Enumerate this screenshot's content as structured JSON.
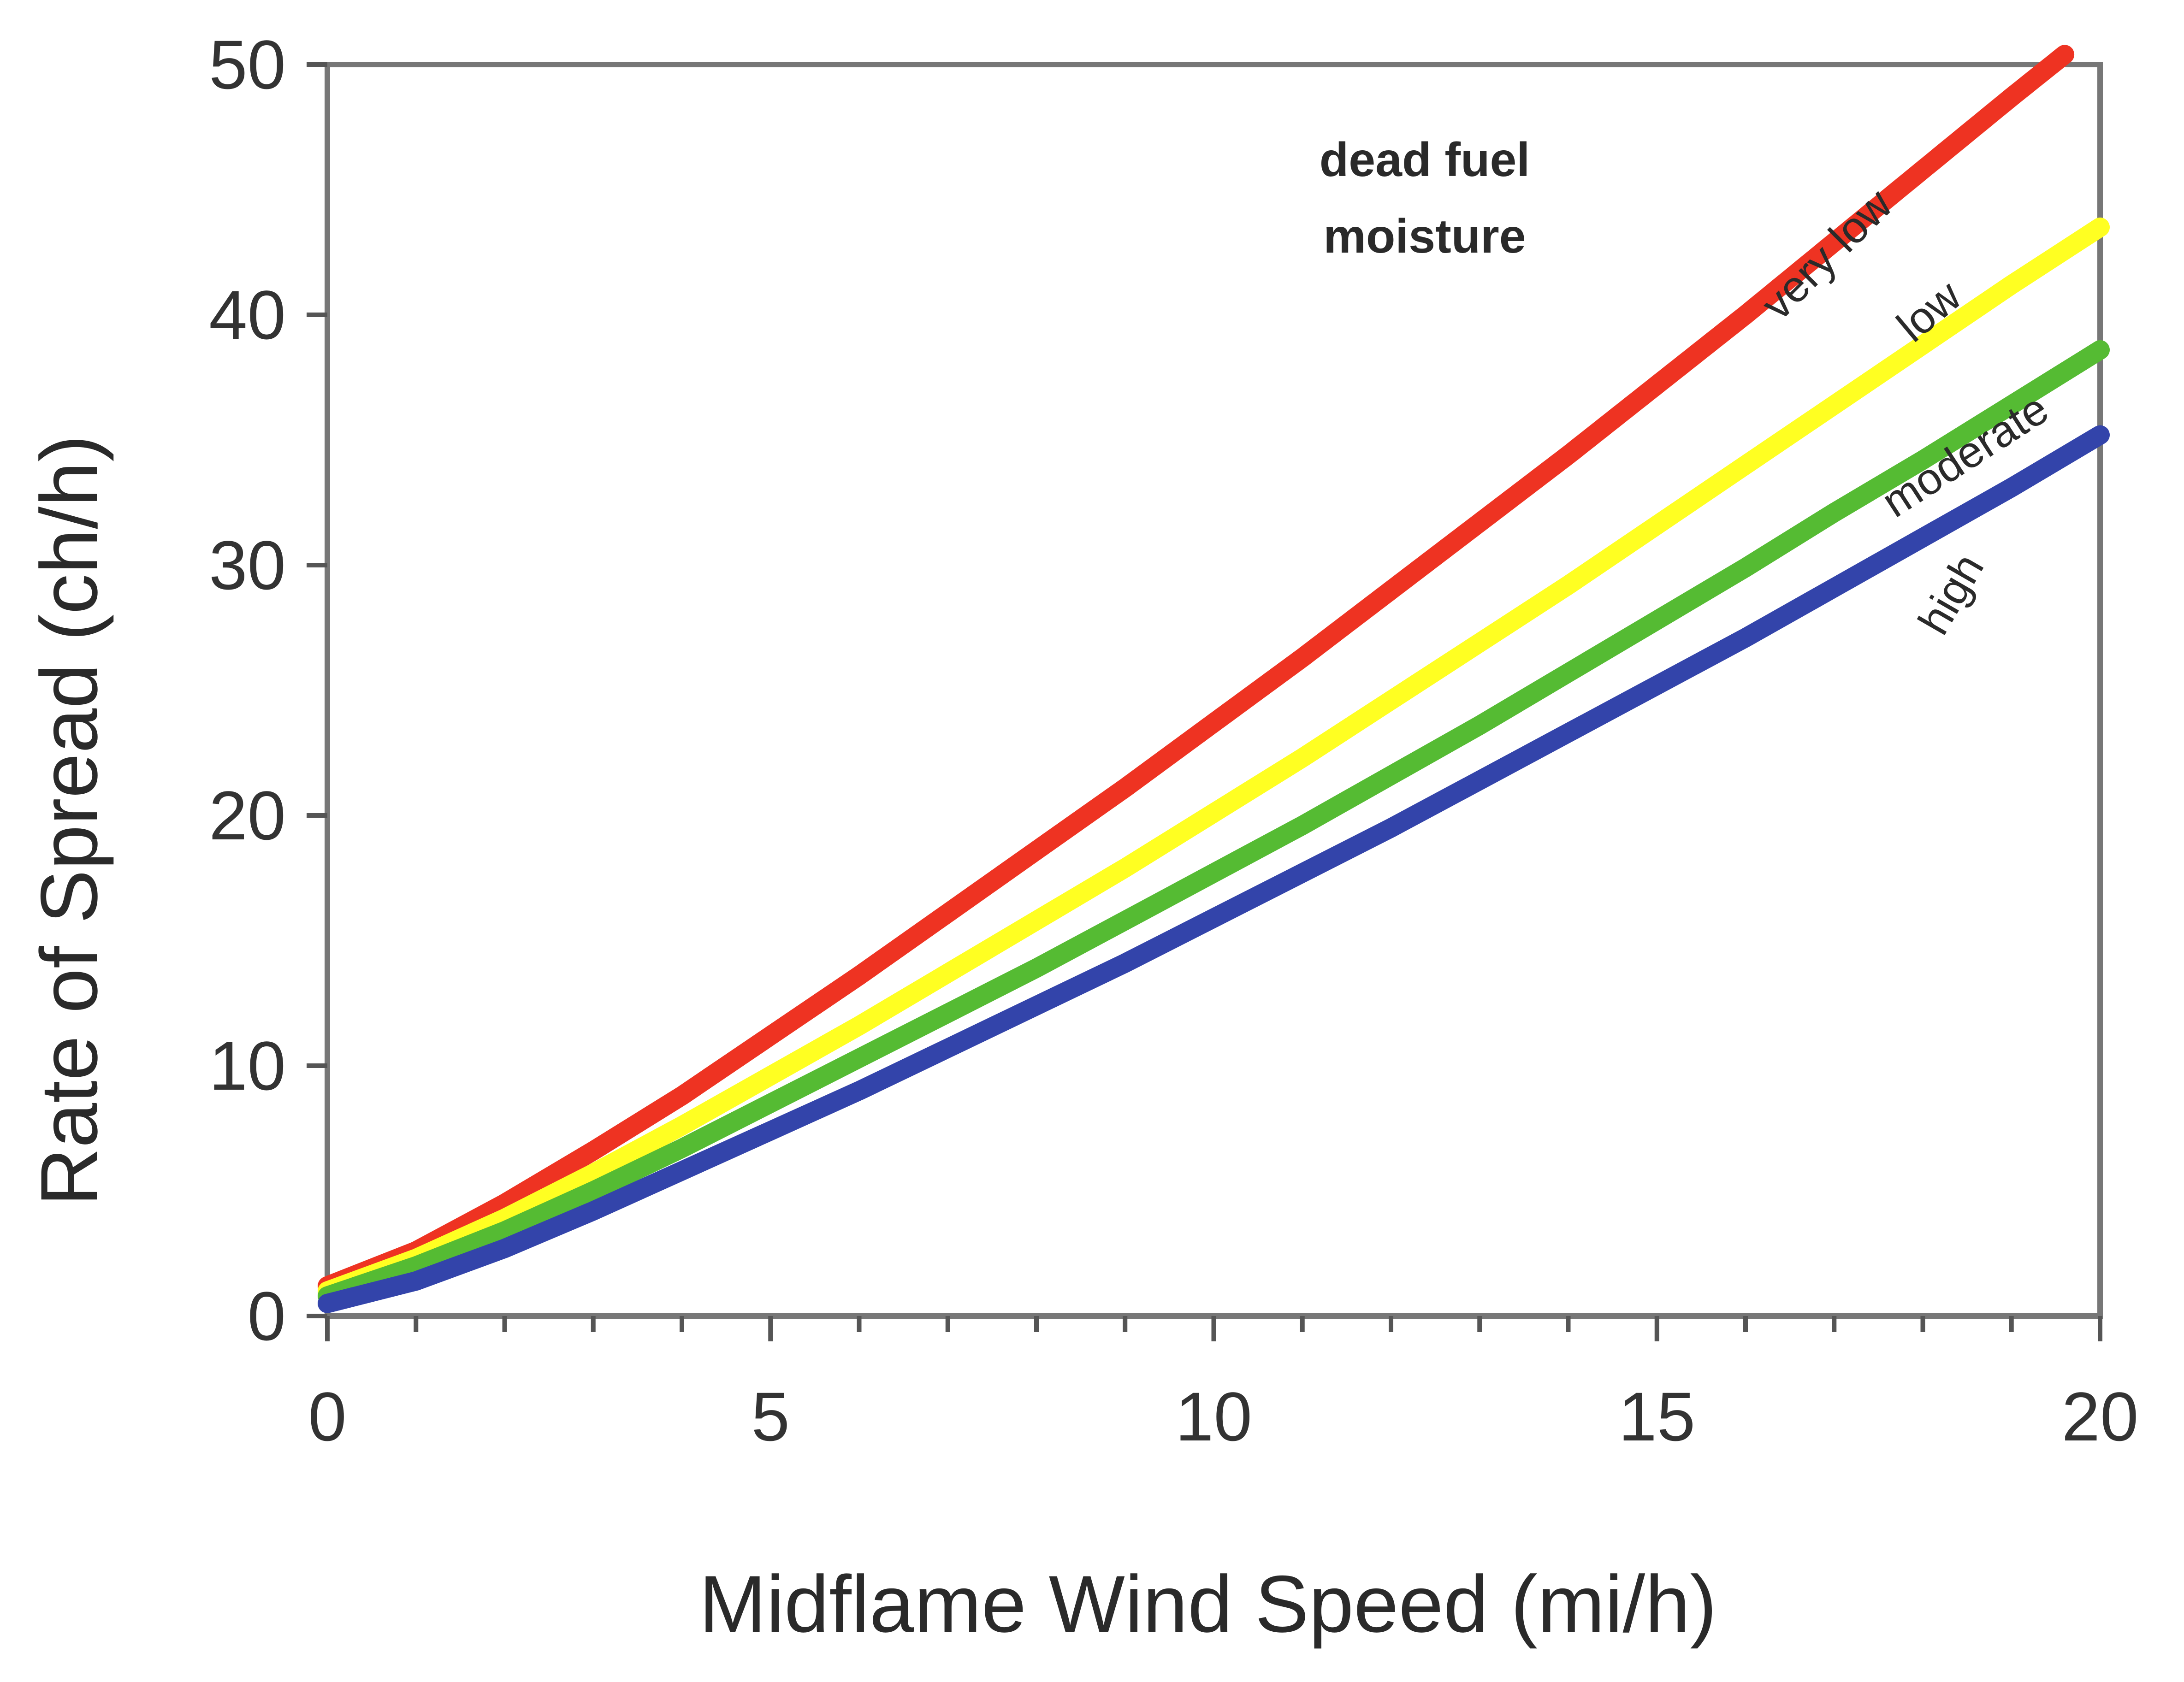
{
  "chart_data": {
    "type": "line",
    "title": "",
    "xlabel": "Midflame Wind Speed (mi/h)",
    "ylabel": "Rate of Spread (ch/h)",
    "xlim": [
      0,
      20
    ],
    "ylim": [
      0,
      50
    ],
    "xticks": [
      0,
      5,
      10,
      15,
      20
    ],
    "yticks": [
      0,
      10,
      20,
      30,
      40,
      50
    ],
    "x_minor_tick_step": 1,
    "grid": false,
    "legend": "none (labels placed on curves)",
    "annotation": [
      "dead fuel",
      "moisture"
    ],
    "series": [
      {
        "name": "very low",
        "color": "#ee3322",
        "x": [
          0,
          1,
          2,
          3,
          4,
          5,
          6,
          7,
          8,
          9,
          10,
          11,
          12,
          13,
          14,
          15,
          16,
          17,
          18,
          19,
          19.6
        ],
        "y": [
          1.2,
          2.6,
          4.5,
          6.6,
          8.8,
          11.2,
          13.6,
          16.1,
          18.6,
          21.1,
          23.7,
          26.3,
          29.0,
          31.7,
          34.4,
          37.2,
          40.0,
          42.9,
          45.8,
          48.7,
          50.4
        ]
      },
      {
        "name": "low",
        "color": "#ffff22",
        "x": [
          0,
          1,
          2,
          3,
          4,
          5,
          6,
          7,
          8,
          9,
          10,
          11,
          12,
          13,
          14,
          15,
          16,
          17,
          18,
          19,
          20
        ],
        "y": [
          1.0,
          2.3,
          3.9,
          5.7,
          7.6,
          9.6,
          11.6,
          13.7,
          15.8,
          17.9,
          20.1,
          22.3,
          24.6,
          26.9,
          29.2,
          31.6,
          34.0,
          36.4,
          38.8,
          41.2,
          43.5
        ]
      },
      {
        "name": "moderate",
        "color": "#55bb33",
        "x": [
          0,
          1,
          2,
          3,
          4,
          5,
          6,
          7,
          8,
          9,
          10,
          11,
          12,
          13,
          14,
          15,
          16,
          17,
          18,
          19,
          20
        ],
        "y": [
          0.8,
          2.0,
          3.4,
          5.0,
          6.7,
          8.5,
          10.3,
          12.1,
          13.9,
          15.8,
          17.7,
          19.6,
          21.6,
          23.6,
          25.7,
          27.8,
          29.9,
          32.1,
          34.2,
          36.4,
          38.6
        ]
      },
      {
        "name": "high",
        "color": "#3344aa",
        "x": [
          0,
          1,
          2,
          3,
          4,
          5,
          6,
          7,
          8,
          9,
          10,
          11,
          12,
          13,
          14,
          15,
          16,
          17,
          18,
          19,
          20
        ],
        "y": [
          0.5,
          1.4,
          2.7,
          4.2,
          5.8,
          7.4,
          9.0,
          10.7,
          12.4,
          14.1,
          15.9,
          17.7,
          19.5,
          21.4,
          23.3,
          25.2,
          27.1,
          29.1,
          31.1,
          33.1,
          35.2
        ]
      }
    ]
  }
}
